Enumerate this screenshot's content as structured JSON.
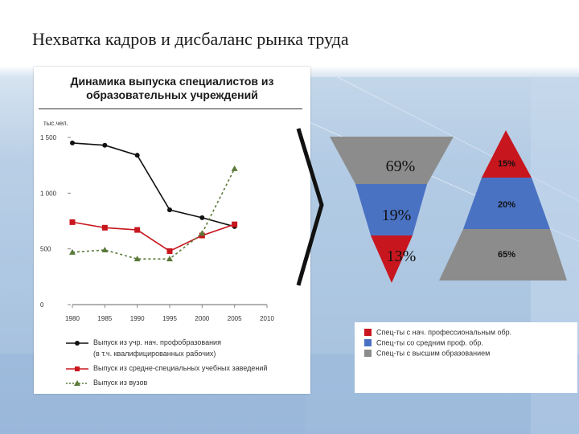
{
  "slide_title": "Нехватка кадров и дисбаланс рынка труда",
  "colors": {
    "red": "#c8161e",
    "blue": "#4a72c3",
    "gray": "#8c8c8c",
    "black_series": "#111111",
    "green_series": "#5a7a3a"
  },
  "line_chart": {
    "title_line1": "Динамика выпуска специалистов из",
    "title_line2": "образовательных учреждений",
    "unit_label": "тыс.чел.",
    "chart_data": {
      "type": "line",
      "x": [
        1980,
        1985,
        1990,
        1995,
        2000,
        2005
      ],
      "x_ticks": [
        "1980",
        "1985",
        "1990",
        "1995",
        "2000",
        "2005",
        "2010"
      ],
      "y_ticks": [
        "1 500",
        "1 000",
        "500",
        "0"
      ],
      "ylim": [
        0,
        1500
      ],
      "xlim": [
        1980,
        2010
      ],
      "series": [
        {
          "name": "Выпуск из учр. нач. профобразования (в т.ч. квалифицированных рабочих)",
          "x": [
            1980,
            1985,
            1990,
            1995,
            2000,
            2005
          ],
          "values": [
            1450,
            1430,
            1340,
            850,
            780,
            700
          ]
        },
        {
          "name": "Выпуск из средне-специальных учебных заведений",
          "x": [
            1980,
            1985,
            1990,
            1995,
            2000,
            2005
          ],
          "values": [
            740,
            690,
            670,
            480,
            620,
            720
          ]
        },
        {
          "name": "Выпуск из вузов",
          "x": [
            1980,
            1985,
            1990,
            1995,
            2000,
            2005
          ],
          "values": [
            470,
            490,
            410,
            410,
            640,
            1220
          ]
        }
      ]
    },
    "legend": [
      {
        "line1": "Выпуск из учр. нач. профобразования",
        "line2": "(в т.ч. квалифицированных рабочих)"
      },
      {
        "line1": "Выпуск из средне-специальных учебных заведений",
        "line2": ""
      },
      {
        "line1": "Выпуск из вузов",
        "line2": ""
      }
    ]
  },
  "inverted_triangle": {
    "bands": [
      {
        "label": "69%",
        "color": "#8c8c8c"
      },
      {
        "label": "19%",
        "color": "#4a72c3"
      },
      {
        "label": "13%",
        "color": "#c8161e"
      }
    ]
  },
  "pyramid": {
    "bands": [
      {
        "label": "15%",
        "color": "#c8161e"
      },
      {
        "label": "20%",
        "color": "#4a72c3"
      },
      {
        "label": "65%",
        "color": "#8c8c8c"
      }
    ]
  },
  "legend_right": [
    {
      "label": "Спец-ты с нач. профессиональным обр.",
      "color": "#c8161e"
    },
    {
      "label": "Спец-ты со средним проф. обр.",
      "color": "#4a72c3"
    },
    {
      "label": "Спец-ты с высшим образованием",
      "color": "#8c8c8c"
    }
  ]
}
